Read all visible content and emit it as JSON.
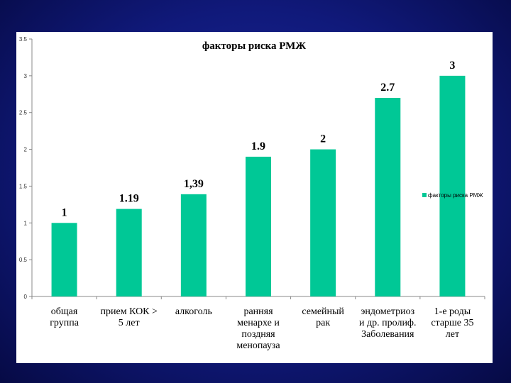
{
  "chart_data": {
    "type": "bar",
    "title": "факторы риска РМЖ",
    "categories": [
      [
        "общая",
        "группа"
      ],
      [
        "прием КОК >",
        "5 лет"
      ],
      [
        "алкоголь"
      ],
      [
        "ранняя",
        "менархе и",
        "поздняя",
        "менопауза"
      ],
      [
        "семейный",
        "рак"
      ],
      [
        "эндометриоз",
        "и др. пролиф.",
        "Заболевания"
      ],
      [
        "1-е роды",
        "старше 35",
        "лет"
      ]
    ],
    "series": [
      {
        "name": "факторы риска РМЖ",
        "values": [
          1,
          1.19,
          1.39,
          1.9,
          2,
          2.7,
          3
        ],
        "labels": [
          "1",
          "1.19",
          "1,39",
          "1.9",
          "2",
          "2.7",
          "3"
        ]
      }
    ],
    "ylim": [
      0,
      3.5
    ],
    "yticks": [
      "0",
      "0.5",
      "1",
      "1.5",
      "2",
      "2.5",
      "3",
      "3.5"
    ],
    "grid": false,
    "legend_position": "right",
    "colors": {
      "bar": "#00c896",
      "background": "#1a2590",
      "axis": "#888888"
    }
  }
}
